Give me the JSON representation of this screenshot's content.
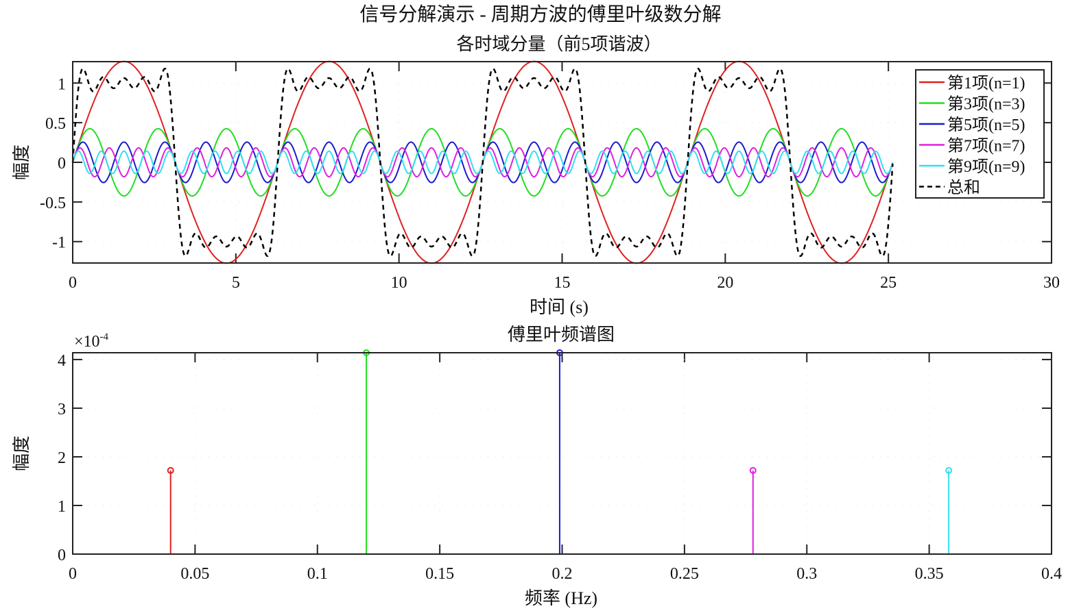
{
  "figure_title": "信号分解演示 - 周期方波的傅里叶级数分解",
  "chart_data": [
    {
      "type": "line",
      "title": "各时域分量（前5项谐波）",
      "xlabel": "时间 (s)",
      "ylabel": "幅度",
      "xlim": [
        0,
        30
      ],
      "ylim": [
        -1.27,
        1.27
      ],
      "xticks": [
        "0",
        "5",
        "10",
        "15",
        "20",
        "25",
        "30"
      ],
      "yticks": [
        "1",
        "0.5",
        "0",
        "-0.5",
        "-1"
      ],
      "grid": true,
      "legend_placement": "top-right",
      "t_range": [
        0,
        25.13
      ],
      "series": [
        {
          "name": "第1项(n=1)",
          "n": 1,
          "amplitude": 1.273,
          "color": "#e02020",
          "style": "solid"
        },
        {
          "name": "第3项(n=3)",
          "n": 3,
          "amplitude": 0.424,
          "color": "#22dd22",
          "style": "solid"
        },
        {
          "name": "第5项(n=5)",
          "n": 5,
          "amplitude": 0.255,
          "color": "#1a1acc",
          "style": "solid"
        },
        {
          "name": "第7项(n=7)",
          "n": 7,
          "amplitude": 0.182,
          "color": "#e020e0",
          "style": "solid"
        },
        {
          "name": "第9项(n=9)",
          "n": 9,
          "amplitude": 0.141,
          "color": "#30e0f0",
          "style": "solid"
        },
        {
          "name": "总和",
          "color": "#000000",
          "style": "dashed"
        }
      ]
    },
    {
      "type": "stem",
      "title": "傅里叶频谱图",
      "xlabel": "频率 (Hz)",
      "ylabel": "幅度",
      "y_exponent_label": "×10",
      "y_exponent": "-4",
      "xlim": [
        0,
        0.4
      ],
      "ylim": [
        0,
        4.14
      ],
      "xticks": [
        "0",
        "0.05",
        "0.1",
        "0.15",
        "0.2",
        "0.25",
        "0.3",
        "0.35",
        "0.4"
      ],
      "yticks": [
        "0",
        "1",
        "2",
        "3",
        "4"
      ],
      "grid": true,
      "points": [
        {
          "x": 0.04,
          "y": 1.72,
          "color": "#e02020"
        },
        {
          "x": 0.12,
          "y": 4.14,
          "color": "#22dd22"
        },
        {
          "x": 0.199,
          "y": 4.14,
          "color": "#1a1acc"
        },
        {
          "x": 0.278,
          "y": 1.72,
          "color": "#e020e0"
        },
        {
          "x": 0.358,
          "y": 1.72,
          "color": "#30e0f0"
        }
      ]
    }
  ]
}
